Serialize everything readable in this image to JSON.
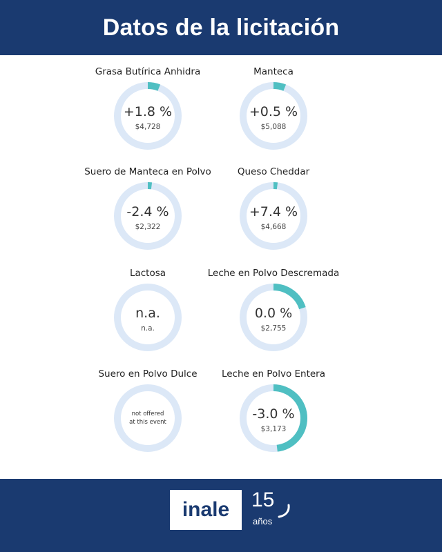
{
  "header": {
    "title": "Datos de la licitación"
  },
  "colors": {
    "brand": "#1a3a70",
    "ring_track": "#dce8f7",
    "ring_fill": "#4fbfc2"
  },
  "chart_data": {
    "type": "donut",
    "items": [
      {
        "name": "Grasa Butírica Anhidra",
        "change": 1.8,
        "change_label": "+1.8 %",
        "price": "$4,728"
      },
      {
        "name": "Manteca",
        "change": 0.5,
        "change_label": "+0.5 %",
        "price": "$5,088"
      },
      {
        "name": "Suero de Manteca en Polvo",
        "change": -2.4,
        "change_label": "-2.4 %",
        "price": "$2,322"
      },
      {
        "name": "Queso Cheddar",
        "change": 7.4,
        "change_label": "+7.4 %",
        "price": "$4,668"
      },
      {
        "name": "Lactosa",
        "change": null,
        "change_label": "n.a.",
        "price": "n.a."
      },
      {
        "name": "Leche en Polvo Descremada",
        "change": 0.0,
        "change_label": "0.0 %",
        "price": "$2,755"
      },
      {
        "name": "Suero en Polvo Dulce",
        "change": null,
        "change_label": "",
        "price": "",
        "note_line1": "not offered",
        "note_line2": "at this event"
      },
      {
        "name": "Leche en Polvo Entera",
        "change": -3.0,
        "change_label": "-3.0 %",
        "price": "$3,173"
      }
    ],
    "ring_fill_fractions": [
      0.06,
      0.06,
      0.02,
      0.02,
      0.0,
      0.2,
      0.0,
      0.48
    ]
  },
  "footer": {
    "logo_text": "inale",
    "anniversary_number": "15",
    "anniversary_word": "años"
  }
}
